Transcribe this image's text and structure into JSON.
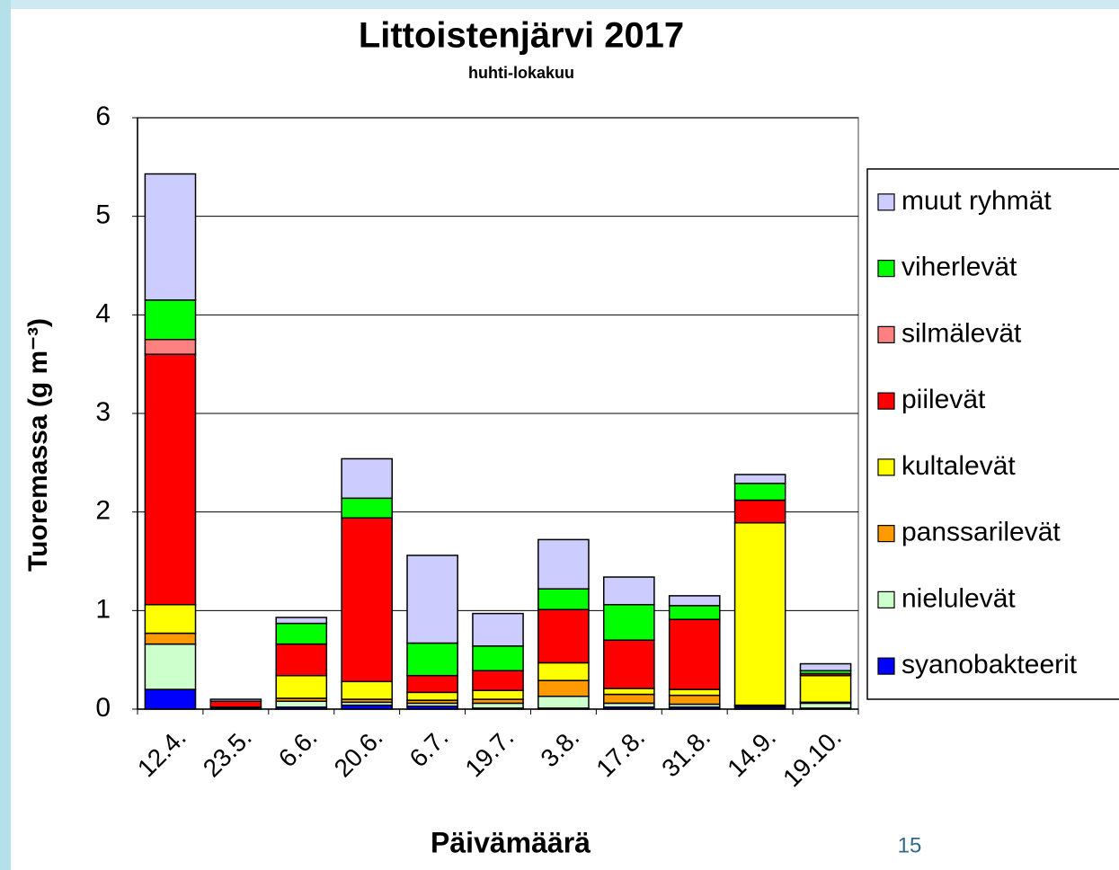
{
  "chart_data": {
    "type": "stacked_bar",
    "title": "Littoistenjärvi 2017",
    "subtitle": "huhti-lokakuu",
    "y_label": "Tuoremassa (g m⁻³)",
    "x_label": "Päivämäärä",
    "page_number": "15",
    "categories": [
      "12.4.",
      "23.5.",
      "6.6.",
      "20.6.",
      "6.7.",
      "19.7.",
      "3.8.",
      "17.8.",
      "31.8.",
      "14.9.",
      "19.10."
    ],
    "series": [
      {
        "name": "syanobakteerit",
        "color": "#0000ff",
        "values": [
          0.2,
          0.01,
          0.02,
          0.04,
          0.03,
          0.01,
          0.01,
          0.02,
          0.02,
          0.02,
          0.01
        ]
      },
      {
        "name": "nielulevät",
        "color": "#ccffcc",
        "values": [
          0.46,
          0,
          0.06,
          0.03,
          0.03,
          0.05,
          0.12,
          0.04,
          0.03,
          0.01,
          0.05
        ]
      },
      {
        "name": "panssarilevät",
        "color": "#ff9900",
        "values": [
          0.11,
          0,
          0.03,
          0.03,
          0.03,
          0.04,
          0.16,
          0.09,
          0.09,
          0.01,
          0.01
        ]
      },
      {
        "name": "kultalevät",
        "color": "#ffff00",
        "values": [
          0.29,
          0.01,
          0.23,
          0.18,
          0.08,
          0.09,
          0.18,
          0.06,
          0.06,
          1.85,
          0.27
        ]
      },
      {
        "name": "piilevät",
        "color": "#ff0000",
        "values": [
          2.54,
          0.06,
          0.32,
          1.66,
          0.17,
          0.2,
          0.54,
          0.49,
          0.71,
          0.23,
          0.02
        ]
      },
      {
        "name": "silmälevät",
        "color": "#ff8080",
        "values": [
          0.15,
          0,
          0,
          0,
          0,
          0,
          0,
          0,
          0,
          0,
          0
        ]
      },
      {
        "name": "viherlevät",
        "color": "#00ff00",
        "values": [
          0.4,
          0,
          0.21,
          0.2,
          0.33,
          0.25,
          0.21,
          0.36,
          0.14,
          0.17,
          0.03
        ]
      },
      {
        "name": "muut ryhmät",
        "color": "#ccccff",
        "values": [
          1.28,
          0.02,
          0.06,
          0.4,
          0.89,
          0.33,
          0.5,
          0.28,
          0.1,
          0.09,
          0.07
        ]
      }
    ],
    "ylim": [
      0,
      6
    ],
    "yticks": [
      0,
      1,
      2,
      3,
      4,
      5,
      6
    ],
    "grid": true
  }
}
